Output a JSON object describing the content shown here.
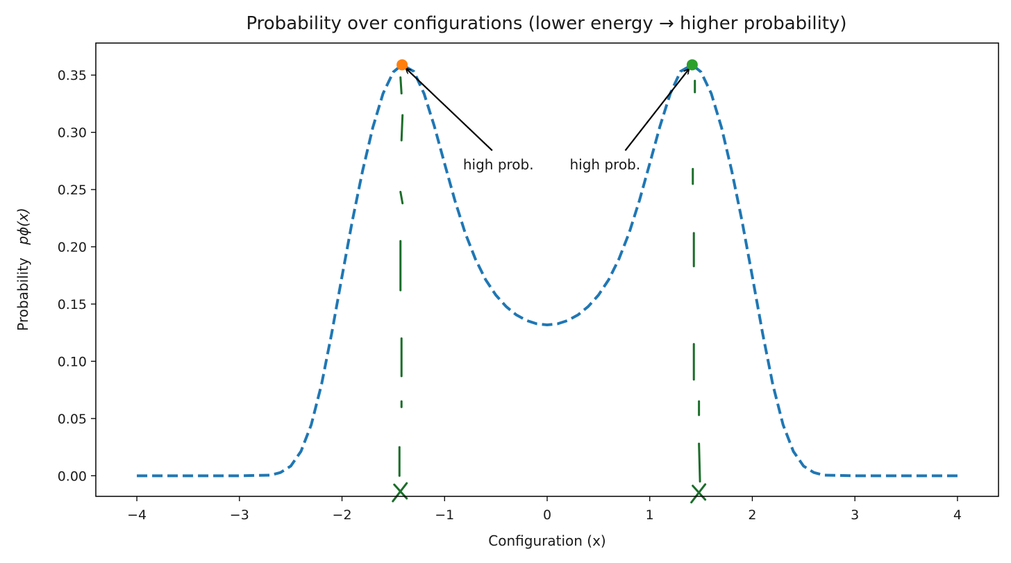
{
  "chart_data": {
    "type": "line",
    "title": "Probability over configurations (lower energy → higher probability)",
    "xlabel": "Configuration (x)",
    "ylabel": "Probability",
    "ylabel_math": "pϕ(x)",
    "xlim": [
      -4.4,
      4.4
    ],
    "ylim": [
      -0.018,
      0.378
    ],
    "xticks": [
      -4,
      -3,
      -2,
      -1,
      0,
      1,
      2,
      3,
      4
    ],
    "xtick_labels": [
      "−4",
      "−3",
      "−2",
      "−1",
      "0",
      "1",
      "2",
      "3",
      "4"
    ],
    "yticks": [
      0.0,
      0.05,
      0.1,
      0.15,
      0.2,
      0.25,
      0.3,
      0.35
    ],
    "ytick_labels": [
      "0.00",
      "0.05",
      "0.10",
      "0.15",
      "0.20",
      "0.25",
      "0.30",
      "0.35"
    ],
    "grid": false,
    "series": [
      {
        "style": "dashed",
        "color": "#1f77b4",
        "x": [
          -4.0,
          -3.0,
          -2.7,
          -2.6,
          -2.5,
          -2.4,
          -2.3,
          -2.2,
          -2.1,
          -2.0,
          -1.9,
          -1.8,
          -1.7,
          -1.6,
          -1.5,
          -1.414,
          -1.3,
          -1.2,
          -1.1,
          -1.0,
          -0.9,
          -0.8,
          -0.7,
          -0.6,
          -0.5,
          -0.4,
          -0.3,
          -0.2,
          -0.1,
          0.0,
          0.1,
          0.2,
          0.3,
          0.4,
          0.5,
          0.6,
          0.7,
          0.8,
          0.9,
          1.0,
          1.1,
          1.2,
          1.3,
          1.414,
          1.5,
          1.6,
          1.7,
          1.8,
          1.9,
          2.0,
          2.1,
          2.2,
          2.3,
          2.4,
          2.5,
          2.6,
          2.7,
          3.0,
          4.0
        ],
        "y": [
          0.0,
          0.0,
          0.0005,
          0.0028,
          0.0084,
          0.0213,
          0.0445,
          0.0796,
          0.1246,
          0.1741,
          0.2224,
          0.2661,
          0.3041,
          0.3339,
          0.3527,
          0.359,
          0.3532,
          0.3338,
          0.3054,
          0.2727,
          0.2406,
          0.2123,
          0.1894,
          0.1713,
          0.1578,
          0.1478,
          0.1405,
          0.1356,
          0.1327,
          0.1318,
          0.1327,
          0.1356,
          0.1405,
          0.1478,
          0.1578,
          0.1713,
          0.1894,
          0.2123,
          0.2406,
          0.2727,
          0.3054,
          0.3338,
          0.3532,
          0.359,
          0.3527,
          0.3339,
          0.3041,
          0.2661,
          0.2224,
          0.1741,
          0.1246,
          0.0796,
          0.0445,
          0.0213,
          0.0084,
          0.0028,
          0.0005,
          0.0,
          0.0
        ]
      }
    ],
    "points": [
      {
        "x": -1.414,
        "y": 0.359,
        "color": "#ff7f0e"
      },
      {
        "x": 1.414,
        "y": 0.359,
        "color": "#2ca02c"
      }
    ],
    "annotations": [
      {
        "text": "high prob.",
        "x": -0.82,
        "y": 0.272,
        "target_x": -1.414,
        "target_y": 0.359
      },
      {
        "text": "high prob.",
        "x": 0.22,
        "y": 0.272,
        "target_x": 1.414,
        "target_y": 0.359
      }
    ],
    "hand_drawn": {
      "color": "#1b6e2a",
      "dashes": [
        {
          "x1": -1.43,
          "y1": 0.348,
          "x2": -1.42,
          "y2": 0.334
        },
        {
          "x1": -1.41,
          "y1": 0.315,
          "x2": -1.42,
          "y2": 0.293
        },
        {
          "x1": -1.43,
          "y1": 0.248,
          "x2": -1.41,
          "y2": 0.238
        },
        {
          "x1": -1.43,
          "y1": 0.205,
          "x2": -1.43,
          "y2": 0.162
        },
        {
          "x1": -1.42,
          "y1": 0.12,
          "x2": -1.42,
          "y2": 0.087
        },
        {
          "x1": -1.42,
          "y1": 0.065,
          "x2": -1.42,
          "y2": 0.06
        },
        {
          "x1": -1.44,
          "y1": 0.025,
          "x2": -1.44,
          "y2": 0.0
        },
        {
          "x1": 1.44,
          "y1": 0.345,
          "x2": 1.44,
          "y2": 0.335
        },
        {
          "x1": 1.42,
          "y1": 0.268,
          "x2": 1.42,
          "y2": 0.255
        },
        {
          "x1": 1.43,
          "y1": 0.212,
          "x2": 1.43,
          "y2": 0.183
        },
        {
          "x1": 1.43,
          "y1": 0.115,
          "x2": 1.43,
          "y2": 0.084
        },
        {
          "x1": 1.48,
          "y1": 0.065,
          "x2": 1.48,
          "y2": 0.053
        },
        {
          "x1": 1.48,
          "y1": 0.028,
          "x2": 1.49,
          "y2": -0.005
        }
      ],
      "crosses": [
        {
          "x": -1.43,
          "y": -0.015
        },
        {
          "x": 1.48,
          "y": -0.016
        }
      ]
    }
  }
}
